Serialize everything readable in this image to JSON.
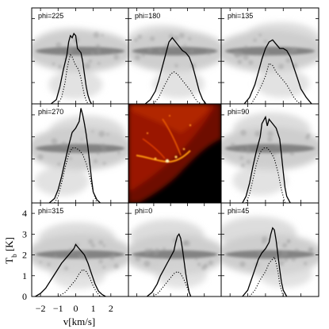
{
  "chart_data": {
    "type": "line",
    "layout": "3x3 grid",
    "xlabel": "v[km/s]",
    "ylabel": "T_b [K]",
    "ylabel_main": "T",
    "ylabel_sub": "b",
    "ylabel_unit": " [K]",
    "xlim": [
      -2.5,
      3.0
    ],
    "ylim": [
      0,
      4.5
    ],
    "xticks": [
      -2,
      -1,
      0,
      1,
      2
    ],
    "xtick_labels": [
      "−2",
      "−1",
      "0",
      "1",
      "2"
    ],
    "yticks": [
      0,
      1,
      2,
      3,
      4
    ],
    "ytick_labels": [
      "0",
      "1",
      "2",
      "3",
      "4"
    ],
    "grid": false,
    "series_styles": {
      "solid": "solid line",
      "dotted": "dotted line"
    },
    "panels": [
      {
        "label": "phi=225",
        "solid": {
          "x": [
            -1.4,
            -1.1,
            -0.9,
            -0.7,
            -0.5,
            -0.4,
            -0.3,
            -0.2,
            -0.1,
            0.0,
            0.1,
            0.2,
            0.3,
            0.4,
            0.5,
            0.6,
            0.7,
            0.8,
            0.9
          ],
          "y": [
            0,
            0.2,
            0.8,
            1.6,
            2.3,
            2.9,
            3.2,
            3.1,
            3.3,
            3.2,
            2.6,
            2.5,
            2.4,
            2.0,
            1.4,
            0.8,
            0.4,
            0.15,
            0
          ]
        },
        "dotted": {
          "x": [
            -1.0,
            -0.8,
            -0.6,
            -0.5,
            -0.4,
            -0.3,
            -0.2,
            -0.1,
            0.0,
            0.1,
            0.2,
            0.3,
            0.4,
            0.5,
            0.6,
            0.7
          ],
          "y": [
            0,
            0.3,
            1.0,
            1.6,
            2.0,
            2.3,
            2.2,
            2.0,
            1.8,
            1.7,
            1.5,
            1.2,
            0.8,
            0.4,
            0.15,
            0
          ]
        }
      },
      {
        "label": "phi=180",
        "solid": {
          "x": [
            -1.5,
            -1.2,
            -0.9,
            -0.7,
            -0.5,
            -0.3,
            -0.1,
            0.0,
            0.1,
            0.3,
            0.5,
            0.7,
            0.9,
            1.1,
            1.3,
            1.5,
            1.7,
            1.9,
            2.1
          ],
          "y": [
            0,
            0.2,
            0.6,
            1.1,
            1.7,
            2.3,
            2.9,
            3.0,
            3.1,
            2.9,
            2.7,
            2.5,
            2.4,
            2.2,
            1.8,
            1.2,
            0.6,
            0.2,
            0
          ]
        },
        "dotted": {
          "x": [
            -1.0,
            -0.7,
            -0.4,
            -0.2,
            0.0,
            0.2,
            0.4,
            0.6,
            0.8,
            1.0,
            1.2,
            1.4,
            1.6,
            1.8
          ],
          "y": [
            0,
            0.3,
            0.8,
            1.1,
            1.4,
            1.5,
            1.4,
            1.2,
            1.0,
            0.8,
            0.6,
            0.3,
            0.1,
            0
          ]
        }
      },
      {
        "label": "phi=135",
        "solid": {
          "x": [
            -1.2,
            -0.9,
            -0.6,
            -0.4,
            -0.2,
            0.0,
            0.2,
            0.4,
            0.6,
            0.8,
            1.0,
            1.2,
            1.4,
            1.6,
            1.8,
            2.0,
            2.3,
            2.6
          ],
          "y": [
            0,
            0.3,
            0.9,
            1.5,
            2.1,
            2.6,
            2.9,
            3.0,
            2.8,
            2.6,
            2.6,
            2.5,
            2.2,
            1.7,
            1.2,
            0.7,
            0.3,
            0
          ]
        },
        "dotted": {
          "x": [
            -0.8,
            -0.5,
            -0.2,
            0.0,
            0.2,
            0.4,
            0.6,
            0.8,
            1.0,
            1.2,
            1.4,
            1.6,
            1.8,
            2.0
          ],
          "y": [
            0,
            0.4,
            0.9,
            1.3,
            1.9,
            1.8,
            1.5,
            1.3,
            1.1,
            0.9,
            0.6,
            0.3,
            0.1,
            0
          ]
        }
      },
      {
        "label": "phi=270",
        "solid": {
          "x": [
            -1.5,
            -1.2,
            -1.0,
            -0.8,
            -0.6,
            -0.4,
            -0.2,
            0.0,
            0.2,
            0.3,
            0.4,
            0.5,
            0.6,
            0.7,
            0.8,
            0.9,
            1.0,
            1.2,
            1.4
          ],
          "y": [
            0,
            0.2,
            0.6,
            1.2,
            1.9,
            2.6,
            3.2,
            3.4,
            3.7,
            4.3,
            4.0,
            3.6,
            3.1,
            2.5,
            1.8,
            1.1,
            0.5,
            0.15,
            0
          ]
        },
        "dotted": {
          "x": [
            -1.2,
            -1.0,
            -0.8,
            -0.6,
            -0.4,
            -0.2,
            0.0,
            0.2,
            0.4,
            0.6,
            0.8,
            1.0,
            1.2
          ],
          "y": [
            0,
            0.3,
            0.9,
            1.6,
            2.2,
            2.5,
            2.5,
            2.4,
            2.2,
            1.8,
            1.2,
            0.5,
            0
          ]
        }
      },
      {
        "label": "phi=90",
        "solid": {
          "x": [
            -1.3,
            -1.1,
            -0.9,
            -0.7,
            -0.5,
            -0.3,
            -0.2,
            0.0,
            0.1,
            0.2,
            0.4,
            0.6,
            0.8,
            0.9,
            1.0,
            1.1,
            1.2,
            1.4
          ],
          "y": [
            0,
            0.3,
            0.9,
            1.7,
            2.4,
            3.0,
            3.6,
            3.9,
            3.5,
            3.8,
            3.6,
            3.4,
            2.9,
            2.2,
            1.4,
            0.7,
            0.3,
            0
          ]
        },
        "dotted": {
          "x": [
            -1.1,
            -0.9,
            -0.7,
            -0.5,
            -0.3,
            -0.1,
            0.1,
            0.3,
            0.5,
            0.7,
            0.9,
            1.1
          ],
          "y": [
            0,
            0.4,
            1.1,
            1.8,
            2.3,
            2.5,
            2.5,
            2.3,
            2.0,
            1.4,
            0.6,
            0
          ]
        }
      },
      {
        "label": "phi=315",
        "solid": {
          "x": [
            -2.3,
            -2.0,
            -1.7,
            -1.4,
            -1.1,
            -0.8,
            -0.5,
            -0.3,
            -0.1,
            0.0,
            0.1,
            0.3,
            0.5,
            0.7,
            0.9,
            1.1,
            1.3,
            1.5,
            1.7
          ],
          "y": [
            0,
            0.15,
            0.4,
            0.8,
            1.2,
            1.6,
            1.9,
            2.1,
            2.3,
            2.5,
            2.4,
            2.2,
            2.0,
            1.6,
            1.1,
            0.6,
            0.25,
            0.1,
            0
          ]
        },
        "dotted": {
          "x": [
            -1.0,
            -0.6,
            -0.3,
            0.0,
            0.2,
            0.4,
            0.6,
            0.8,
            1.0,
            1.2,
            1.4
          ],
          "y": [
            0,
            0.2,
            0.5,
            0.8,
            1.1,
            1.3,
            1.2,
            0.9,
            0.5,
            0.2,
            0
          ]
        }
      },
      {
        "label": "phi=0",
        "solid": {
          "x": [
            -1.4,
            -1.1,
            -0.8,
            -0.6,
            -0.4,
            -0.2,
            0.0,
            0.2,
            0.3,
            0.4,
            0.5,
            0.6,
            0.7,
            0.8,
            0.9,
            1.0,
            1.1,
            1.2
          ],
          "y": [
            0,
            0.2,
            0.6,
            1.0,
            1.3,
            1.6,
            1.9,
            2.2,
            2.6,
            2.9,
            3.0,
            2.8,
            2.3,
            1.7,
            1.1,
            0.6,
            0.2,
            0
          ]
        },
        "dotted": {
          "x": [
            -1.0,
            -0.7,
            -0.4,
            -0.2,
            0.0,
            0.2,
            0.4,
            0.6,
            0.8,
            1.0,
            1.2
          ],
          "y": [
            0,
            0.2,
            0.5,
            0.7,
            0.9,
            1.1,
            1.2,
            1.1,
            0.8,
            0.4,
            0
          ]
        }
      },
      {
        "label": "phi=45",
        "solid": {
          "x": [
            -1.3,
            -1.0,
            -0.8,
            -0.6,
            -0.4,
            -0.2,
            0.0,
            0.2,
            0.3,
            0.4,
            0.5,
            0.6,
            0.7,
            0.8,
            0.9,
            1.0,
            1.2
          ],
          "y": [
            0,
            0.3,
            0.8,
            1.3,
            1.8,
            2.1,
            2.3,
            2.6,
            3.0,
            3.3,
            3.2,
            2.7,
            2.0,
            1.3,
            0.7,
            0.3,
            0
          ]
        },
        "dotted": {
          "x": [
            -0.9,
            -0.6,
            -0.3,
            0.0,
            0.2,
            0.4,
            0.5,
            0.6,
            0.7,
            0.8,
            1.0
          ],
          "y": [
            0,
            0.3,
            0.8,
            1.2,
            1.6,
            1.8,
            1.9,
            1.6,
            1.2,
            0.6,
            0
          ]
        }
      }
    ],
    "center_panel": {
      "type": "heatmap",
      "colormap": "hot",
      "background": "#000000"
    },
    "colors": {
      "line": "#000000",
      "map_bright": "#fff2b0",
      "map_mid": "#cc2200",
      "map_dark": "#000000"
    }
  }
}
